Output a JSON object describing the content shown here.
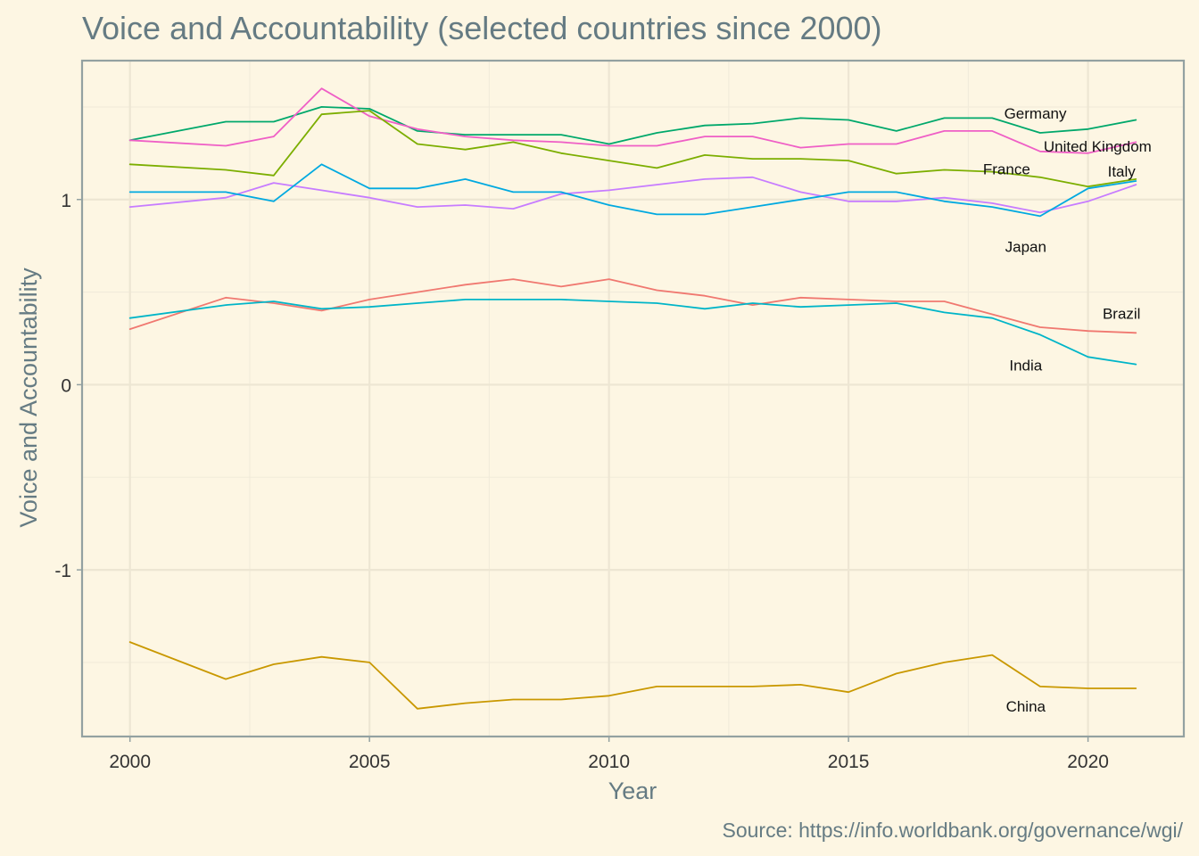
{
  "chart_data": {
    "type": "line",
    "title": "Voice and Accountability (selected countries since 2000)",
    "xlabel": "Year",
    "ylabel": "Voice and Accountability",
    "caption": "Source: https://info.worldbank.org/governance/wgi/",
    "xlim": [
      1999,
      2022
    ],
    "ylim": [
      -1.9,
      1.75
    ],
    "x_ticks": [
      2000,
      2005,
      2010,
      2015,
      2020
    ],
    "y_ticks": [
      -1,
      0,
      1
    ],
    "x_tick_labels": [
      "2000",
      "2005",
      "2010",
      "2015",
      "2020"
    ],
    "y_tick_labels": [
      "-1",
      "0",
      "1"
    ],
    "grid": true,
    "legend": "none (direct labels)",
    "x": [
      2000,
      2002,
      2003,
      2004,
      2005,
      2006,
      2007,
      2008,
      2009,
      2010,
      2011,
      2012,
      2013,
      2014,
      2015,
      2016,
      2017,
      2018,
      2019,
      2020,
      2021
    ],
    "series": [
      {
        "name": "Germany",
        "color": "#00a86b",
        "values": [
          1.32,
          1.42,
          1.42,
          1.5,
          1.49,
          1.37,
          1.35,
          1.35,
          1.35,
          1.3,
          1.36,
          1.4,
          1.41,
          1.44,
          1.43,
          1.37,
          1.44,
          1.44,
          1.36,
          1.38,
          1.43
        ]
      },
      {
        "name": "United Kingdom",
        "color": "#ef5fc6",
        "values": [
          1.32,
          1.29,
          1.34,
          1.6,
          1.45,
          1.38,
          1.34,
          1.32,
          1.31,
          1.29,
          1.29,
          1.34,
          1.34,
          1.28,
          1.3,
          1.3,
          1.37,
          1.37,
          1.26,
          1.25,
          1.31
        ]
      },
      {
        "name": "France",
        "color": "#7cae00",
        "values": [
          1.19,
          1.16,
          1.13,
          1.46,
          1.48,
          1.3,
          1.27,
          1.31,
          1.25,
          1.21,
          1.17,
          1.24,
          1.22,
          1.22,
          1.21,
          1.14,
          1.16,
          1.15,
          1.12,
          1.07,
          1.11
        ]
      },
      {
        "name": "Italy",
        "color": "#c77cff",
        "values": [
          0.96,
          1.01,
          1.09,
          1.05,
          1.01,
          0.96,
          0.97,
          0.95,
          1.03,
          1.05,
          1.08,
          1.11,
          1.12,
          1.04,
          0.99,
          0.99,
          1.01,
          0.98,
          0.93,
          0.99,
          1.08
        ]
      },
      {
        "name": "Japan",
        "color": "#00a9e0",
        "values": [
          1.04,
          1.04,
          0.99,
          1.19,
          1.06,
          1.06,
          1.11,
          1.04,
          1.04,
          0.97,
          0.92,
          0.92,
          0.96,
          1.0,
          1.04,
          1.04,
          0.99,
          0.96,
          0.91,
          1.06,
          1.1
        ]
      },
      {
        "name": "Brazil",
        "color": "#f07870",
        "values": [
          0.3,
          0.47,
          0.44,
          0.4,
          0.46,
          0.5,
          0.54,
          0.57,
          0.53,
          0.57,
          0.51,
          0.48,
          0.43,
          0.47,
          0.46,
          0.45,
          0.45,
          0.38,
          0.31,
          0.29,
          0.28
        ]
      },
      {
        "name": "India",
        "color": "#00b5c8",
        "values": [
          0.36,
          0.43,
          0.45,
          0.41,
          0.42,
          0.44,
          0.46,
          0.46,
          0.46,
          0.45,
          0.44,
          0.41,
          0.44,
          0.42,
          0.43,
          0.44,
          0.39,
          0.36,
          0.27,
          0.15,
          0.11
        ]
      },
      {
        "name": "China",
        "color": "#c99800",
        "values": [
          -1.39,
          -1.59,
          -1.51,
          -1.47,
          -1.5,
          -1.75,
          -1.72,
          -1.7,
          -1.7,
          -1.68,
          -1.63,
          -1.63,
          -1.63,
          -1.62,
          -1.66,
          -1.56,
          -1.5,
          -1.46,
          -1.63,
          -1.64,
          -1.64
        ]
      }
    ]
  }
}
